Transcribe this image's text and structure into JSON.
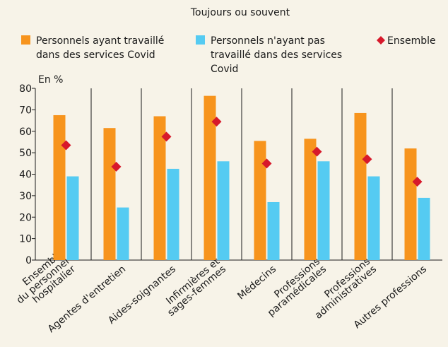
{
  "chart_data": {
    "type": "bar",
    "title": "Toujours ou souvent",
    "y_label": "En %",
    "categories": [
      "Ensemble\ndu personnel\nhospitalier",
      "Agentes d'entretien",
      "Aides-soignantes",
      "Infirmières et\nsages-femmes",
      "Médecins",
      "Professions\nparamédicales",
      "Professions\nadministratives",
      "Autres professions"
    ],
    "series": [
      {
        "name": "Personnels ayant travaillé\ndans des services Covid",
        "color": "#f7941d",
        "values": [
          67.5,
          61.5,
          67,
          76.5,
          55.5,
          56.5,
          68.5,
          52
        ]
      },
      {
        "name": "Personnels n'ayant pas\ntravaillé dans des services\nCovid",
        "color": "#55cbf2",
        "values": [
          39,
          24.5,
          42.5,
          46,
          27,
          46,
          39,
          29
        ]
      },
      {
        "name": "Ensemble",
        "color": "#d7192b",
        "marker": "diamond",
        "values": [
          53.5,
          43.5,
          57.5,
          64.5,
          45,
          50.5,
          47,
          36.5
        ]
      }
    ],
    "ylim": [
      0,
      80
    ],
    "yticks": [
      0,
      10,
      20,
      30,
      40,
      50,
      60,
      70,
      80
    ],
    "legend": "top"
  }
}
